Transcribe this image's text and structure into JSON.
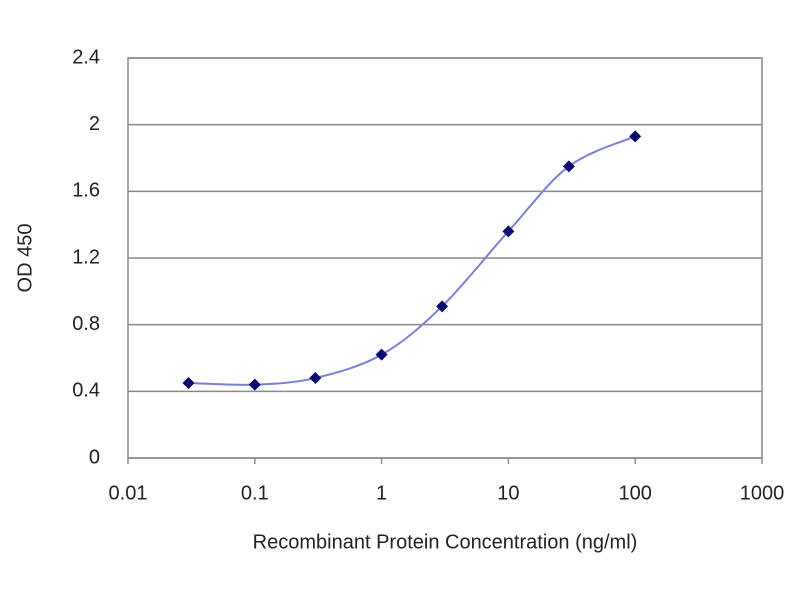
{
  "chart_data": {
    "type": "line",
    "x_label": "Recombinant Protein Concentration (ng/ml)",
    "y_label": "OD 450",
    "x": [
      0.03,
      0.1,
      0.3,
      1,
      3,
      10,
      30,
      100
    ],
    "values": [
      0.45,
      0.44,
      0.48,
      0.62,
      0.91,
      1.36,
      1.75,
      1.93
    ],
    "color": "#7b7fd6",
    "marker_color": "#0a0a6e",
    "xscale": "log",
    "xlim": [
      0.01,
      1000
    ],
    "xticks": [
      0.01,
      0.1,
      1,
      10,
      100,
      1000
    ],
    "ylim": [
      0,
      2.4
    ],
    "yticks": [
      0,
      0.4,
      0.8,
      1.2,
      1.6,
      2,
      2.4
    ],
    "grid": true
  }
}
